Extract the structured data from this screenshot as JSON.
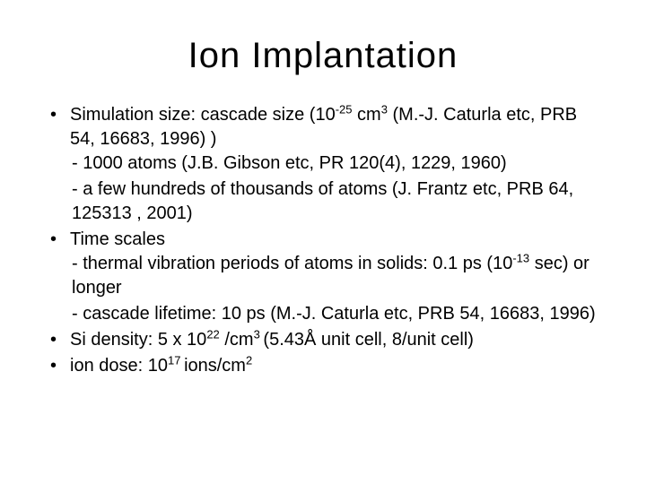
{
  "slide": {
    "title": "Ion Implantation",
    "title_fontsize": 40,
    "body_fontsize": 20,
    "background_color": "#ffffff",
    "text_color": "#000000",
    "bullets": [
      {
        "lead": " Simulation size: cascade size (10",
        "sup1": "-25",
        "mid1": " cm",
        "sup2": "3",
        "tail1": " (M.-J. Caturla etc, PRB 54, 16683, 1996) )",
        "subs": [
          {
            "text": "- 1000 atoms (J.B. Gibson etc, PR 120(4), 1229, 1960)"
          },
          {
            "text": "- a few hundreds of thousands of atoms (J. Frantz etc, PRB 64, 125313 , 2001)"
          }
        ]
      },
      {
        "text": "Time scales",
        "subs": [
          {
            "lead": "- thermal vibration periods of atoms in solids: 0.1 ps (10",
            "sup1": "-13",
            "tail1": " sec) or longer"
          },
          {
            "text": "- cascade lifetime: 10 ps (M.-J. Caturla etc, PRB 54, 16683, 1996)"
          }
        ]
      },
      {
        "lead": "Si density: 5 x 10",
        "sup1": "22",
        "mid1": " /cm",
        "sup2": "3 ",
        "tail1": "(5.43Å unit cell, 8/unit cell)"
      },
      {
        "lead": "ion dose: 10",
        "sup1": "17 ",
        "mid1": "ions/cm",
        "sup2": "2",
        "tail1": ""
      }
    ]
  }
}
